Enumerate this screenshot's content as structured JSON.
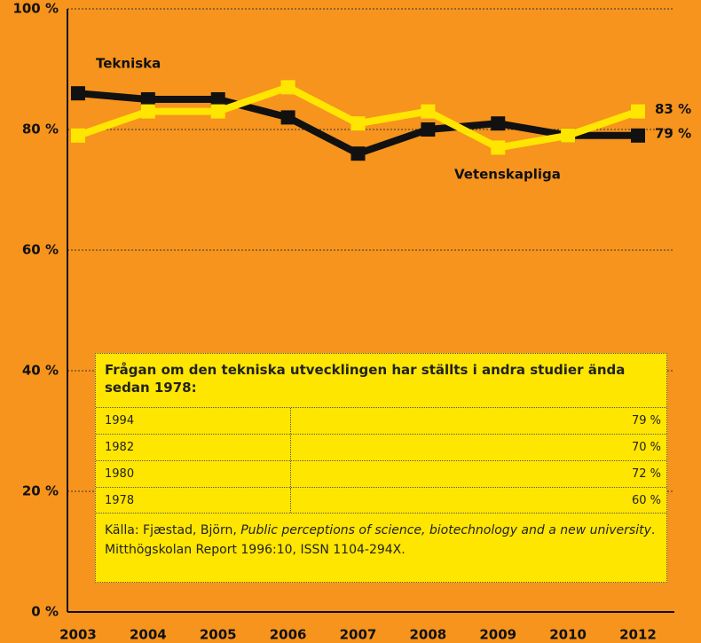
{
  "chart_data": {
    "type": "line",
    "categories": [
      "2003",
      "2004",
      "2005",
      "2006",
      "2007",
      "2008",
      "2009",
      "2010",
      "2012"
    ],
    "series": [
      {
        "name": "Tekniska",
        "color": "#111111",
        "values": [
          86,
          85,
          85,
          82,
          76,
          80,
          81,
          79,
          79
        ],
        "value_labels": [
          null,
          null,
          null,
          null,
          null,
          null,
          null,
          null,
          "79 %"
        ]
      },
      {
        "name": "Vetenskapliga",
        "color": "#FFE600",
        "values": [
          79,
          83,
          83,
          87,
          81,
          83,
          77,
          79,
          83
        ],
        "value_labels": [
          null,
          null,
          null,
          null,
          null,
          null,
          null,
          null,
          "83 %"
        ]
      }
    ],
    "ylim": [
      0,
      100
    ],
    "yticks": [
      {
        "value": 0,
        "label": "0 %"
      },
      {
        "value": 20,
        "label": "20 %"
      },
      {
        "value": 40,
        "label": "40 %"
      },
      {
        "value": 60,
        "label": "60 %"
      },
      {
        "value": 80,
        "label": "80 %"
      },
      {
        "value": 100,
        "label": "100 %"
      }
    ],
    "grid": true,
    "background": "#F7941D",
    "inset": {
      "title": "Frågan om den tekniska utvecklingen har ställts i andra studier ända sedan 1978:",
      "rows": [
        [
          "1994",
          "79 %"
        ],
        [
          "1982",
          "70 %"
        ],
        [
          "1980",
          "72 %"
        ],
        [
          "1978",
          "60 %"
        ]
      ],
      "source": [
        "Källa: Fjæstad, Björn, ",
        "Public perceptions of science, biotechnology and a new university",
        ". Mitthögskolan Report 1996:10, ISSN 1104-294X."
      ]
    }
  }
}
